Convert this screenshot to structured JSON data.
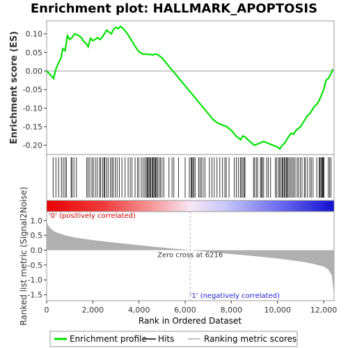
{
  "chart_data": {
    "type": "line",
    "title": "Enrichment plot: HALLMARK_APOPTOSIS",
    "panels": {
      "enrichment": {
        "ylabel": "Enrichment score (ES)",
        "ylim": [
          -0.225,
          0.135
        ],
        "yticks": [
          0.1,
          0.05,
          0.0,
          -0.05,
          -0.1,
          -0.15,
          -0.2
        ],
        "ytick_labels": [
          "0.10",
          "0.05",
          "0.00",
          "-0.05",
          "-0.10",
          "-0.15",
          "-0.20"
        ],
        "series": [
          {
            "name": "Enrichment profile",
            "color": "#00e000",
            "x": [
              0,
              150,
              300,
              400,
              500,
              620,
              700,
              800,
              900,
              1000,
              1100,
              1200,
              1300,
              1400,
              1500,
              1600,
              1700,
              1800,
              1900,
              2000,
              2100,
              2200,
              2300,
              2400,
              2500,
              2600,
              2700,
              2800,
              2900,
              3000,
              3100,
              3200,
              3300,
              3400,
              3500,
              3600,
              3700,
              3800,
              3900,
              4000,
              4100,
              4200,
              4300,
              4400,
              4500,
              4600,
              4700,
              4800,
              4900,
              5000,
              5200,
              5400,
              5600,
              5800,
              6000,
              6200,
              6400,
              6600,
              6800,
              7000,
              7200,
              7400,
              7600,
              7800,
              8000,
              8200,
              8400,
              8500,
              8600,
              8800,
              9000,
              9200,
              9400,
              9600,
              9800,
              10000,
              10100,
              10200,
              10300,
              10400,
              10500,
              10600,
              10700,
              10800,
              10900,
              11000,
              11100,
              11200,
              11300,
              11400,
              11500,
              11600,
              11700,
              11800,
              11900,
              12000,
              12100,
              12200,
              12300,
              12400
            ],
            "values": [
              0.0,
              -0.01,
              -0.02,
              0.005,
              0.02,
              0.035,
              0.06,
              0.055,
              0.095,
              0.085,
              0.09,
              0.1,
              0.098,
              0.095,
              0.09,
              0.08,
              0.075,
              0.065,
              0.088,
              0.082,
              0.085,
              0.09,
              0.085,
              0.09,
              0.1,
              0.11,
              0.105,
              0.1,
              0.112,
              0.118,
              0.114,
              0.12,
              0.115,
              0.108,
              0.1,
              0.09,
              0.08,
              0.07,
              0.06,
              0.052,
              0.048,
              0.045,
              0.046,
              0.044,
              0.045,
              0.043,
              0.046,
              0.044,
              0.04,
              0.035,
              0.02,
              0.005,
              -0.01,
              -0.025,
              -0.04,
              -0.055,
              -0.07,
              -0.085,
              -0.1,
              -0.115,
              -0.13,
              -0.14,
              -0.145,
              -0.15,
              -0.16,
              -0.175,
              -0.185,
              -0.175,
              -0.178,
              -0.19,
              -0.2,
              -0.195,
              -0.19,
              -0.195,
              -0.2,
              -0.205,
              -0.21,
              -0.2,
              -0.195,
              -0.185,
              -0.175,
              -0.168,
              -0.17,
              -0.16,
              -0.155,
              -0.15,
              -0.14,
              -0.13,
              -0.12,
              -0.115,
              -0.105,
              -0.095,
              -0.09,
              -0.08,
              -0.065,
              -0.05,
              -0.025,
              -0.02,
              -0.01,
              0.005
            ]
          }
        ]
      },
      "hits": {
        "series_name": "Hits",
        "positions": [
          280,
          400,
          520,
          640,
          720,
          800,
          860,
          1060,
          1100,
          1180,
          1290,
          1740,
          1800,
          1870,
          1960,
          2020,
          2110,
          2190,
          2290,
          2340,
          2420,
          2480,
          2520,
          2590,
          2660,
          2760,
          2830,
          2880,
          2970,
          3050,
          3150,
          3260,
          3400,
          3530,
          3620,
          3700,
          3830,
          3930,
          4000,
          4100,
          4180,
          4250,
          4310,
          4350,
          4390,
          4430,
          4470,
          4510,
          4560,
          4600,
          4640,
          4680,
          4720,
          4760,
          4800,
          4870,
          4930,
          5000,
          5080,
          5300,
          5430,
          5510,
          5710,
          6000,
          6180,
          6250,
          6290,
          6330,
          6380,
          6430,
          6580,
          6640,
          6700,
          6780,
          6860,
          7050,
          7160,
          7260,
          7380,
          7500,
          7620,
          7720,
          7780,
          7900,
          8130,
          8220,
          8310,
          8390,
          8440,
          8500,
          8560,
          8590,
          8960,
          9010,
          9080,
          9140,
          9260,
          9310,
          9340,
          9400,
          9530,
          9600,
          9700,
          9900,
          9960,
          10040,
          10090,
          10150,
          10200,
          10240,
          10290,
          10330,
          10380,
          10420,
          10460,
          10520,
          10580,
          10640,
          10700,
          10760,
          10850,
          10910,
          10990,
          11060,
          11160,
          11210,
          11300,
          11400,
          11460,
          11540,
          11700,
          11800,
          11840,
          11880,
          11920,
          11950,
          11980,
          12010,
          12200,
          12260,
          12320
        ]
      },
      "ranked_metric": {
        "ylabel": "Ranked list metric (Signal2Noise)",
        "ylim": [
          -1.7,
          1.3
        ],
        "yticks": [
          1.0,
          0.5,
          0.0,
          -0.5,
          -1.0,
          -1.5
        ],
        "ytick_labels": [
          "1.0",
          "0.5",
          "0.0",
          "-0.5",
          "-1.0",
          "-1.5"
        ],
        "x": [
          0,
          50,
          150,
          300,
          500,
          800,
          1200,
          2000,
          3000,
          4000,
          5000,
          6000,
          6216,
          7000,
          8000,
          9000,
          10000,
          11000,
          11500,
          12000,
          12200,
          12350,
          12420,
          12450
        ],
        "values": [
          1.0,
          0.85,
          0.75,
          0.65,
          0.58,
          0.5,
          0.43,
          0.34,
          0.25,
          0.17,
          0.09,
          0.02,
          0.0,
          -0.06,
          -0.13,
          -0.2,
          -0.28,
          -0.38,
          -0.45,
          -0.55,
          -0.65,
          -0.85,
          -1.3,
          -1.6
        ],
        "annotations": {
          "zero_cross": "Zero cross at 6216",
          "zero_cross_x": 6216,
          "positive_label": "'0' (positively correlated)",
          "negative_label": "'1' (negatively correlated)"
        }
      }
    },
    "xlabel": "Rank in Ordered Dataset",
    "xlim": [
      0,
      12450
    ],
    "xticks": [
      0,
      2000,
      4000,
      6000,
      8000,
      10000,
      12000
    ],
    "xtick_labels": [
      "0",
      "2,000",
      "4,000",
      "6,000",
      "8,000",
      "10,000",
      "12,000"
    ],
    "legend": {
      "placement": "bottom",
      "items": [
        {
          "label": "Enrichment profile",
          "color": "#00e000"
        },
        {
          "label": "Hits",
          "color": "#000000"
        },
        {
          "label": "Ranking metric scores",
          "color": "#b0b0b0"
        }
      ]
    }
  }
}
